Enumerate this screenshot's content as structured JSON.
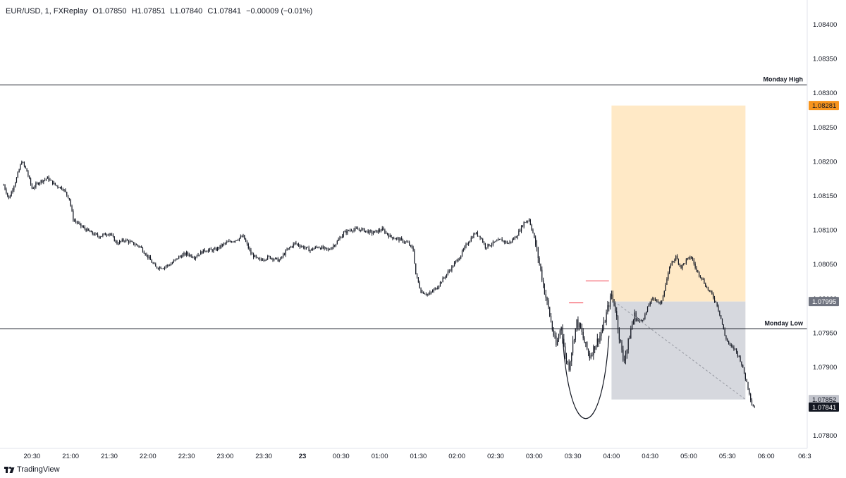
{
  "header": {
    "symbol": "EUR/USD, 1, FXReplay",
    "open": "O1.07850",
    "high": "H1.07851",
    "low": "L1.07840",
    "close": "C1.07841",
    "change": "−0.00009 (−0.01%)"
  },
  "brand": {
    "name": "TradingView",
    "icon": "tradingview-logo-icon"
  },
  "chart_data": {
    "type": "candlestick",
    "instrument": "EUR/USD",
    "timeframe": "1",
    "ylim": [
      1.0778,
      1.0843
    ],
    "y_ticks": [
      "1.08400",
      "1.08350",
      "1.08300",
      "1.08250",
      "1.08200",
      "1.08150",
      "1.08100",
      "1.08050",
      "1.08000",
      "1.07950",
      "1.07900",
      "1.07850",
      "1.07800"
    ],
    "x_ticks": [
      "20:30",
      "21:00",
      "21:30",
      "22:00",
      "22:30",
      "23:00",
      "23:30",
      "23",
      "00:30",
      "01:00",
      "01:30",
      "02:00",
      "02:30",
      "03:00",
      "03:30",
      "04:00",
      "04:30",
      "05:00",
      "05:30",
      "06:00",
      "06:3"
    ],
    "x_tick_minutes": [
      -210,
      -180,
      -150,
      -120,
      -90,
      -60,
      -30,
      0,
      30,
      60,
      90,
      120,
      150,
      180,
      210,
      240,
      270,
      300,
      330,
      360,
      390
    ],
    "bold_tick": "23",
    "price_path": [
      [
        -232,
        1.08165
      ],
      [
        -228,
        1.08145
      ],
      [
        -222,
        1.08175
      ],
      [
        -218,
        1.082
      ],
      [
        -214,
        1.08185
      ],
      [
        -210,
        1.0816
      ],
      [
        -204,
        1.0817
      ],
      [
        -198,
        1.08175
      ],
      [
        -192,
        1.08165
      ],
      [
        -186,
        1.0816
      ],
      [
        -181,
        1.08145
      ],
      [
        -178,
        1.08115
      ],
      [
        -172,
        1.08105
      ],
      [
        -164,
        1.08095
      ],
      [
        -158,
        1.0809
      ],
      [
        -150,
        1.08095
      ],
      [
        -144,
        1.0808
      ],
      [
        -138,
        1.08085
      ],
      [
        -132,
        1.0808
      ],
      [
        -126,
        1.08075
      ],
      [
        -120,
        1.0806
      ],
      [
        -114,
        1.08045
      ],
      [
        -108,
        1.08045
      ],
      [
        -102,
        1.0805
      ],
      [
        -96,
        1.0806
      ],
      [
        -90,
        1.08065
      ],
      [
        -84,
        1.0806
      ],
      [
        -76,
        1.0807
      ],
      [
        -68,
        1.0807
      ],
      [
        -60,
        1.0808
      ],
      [
        -52,
        1.08085
      ],
      [
        -46,
        1.0809
      ],
      [
        -40,
        1.08065
      ],
      [
        -34,
        1.08055
      ],
      [
        -26,
        1.0806
      ],
      [
        -18,
        1.08055
      ],
      [
        -12,
        1.0807
      ],
      [
        -6,
        1.0808
      ],
      [
        0,
        1.08075
      ],
      [
        6,
        1.0807
      ],
      [
        12,
        1.08075
      ],
      [
        20,
        1.0807
      ],
      [
        26,
        1.0808
      ],
      [
        32,
        1.08095
      ],
      [
        38,
        1.081
      ],
      [
        46,
        1.081
      ],
      [
        54,
        1.08095
      ],
      [
        62,
        1.081
      ],
      [
        68,
        1.0809
      ],
      [
        76,
        1.08085
      ],
      [
        82,
        1.0808
      ],
      [
        86,
        1.0807
      ],
      [
        88,
        1.08035
      ],
      [
        92,
        1.0801
      ],
      [
        98,
        1.08005
      ],
      [
        104,
        1.08015
      ],
      [
        110,
        1.0803
      ],
      [
        116,
        1.08045
      ],
      [
        122,
        1.0806
      ],
      [
        128,
        1.0808
      ],
      [
        134,
        1.08095
      ],
      [
        138,
        1.0809
      ],
      [
        142,
        1.08075
      ],
      [
        148,
        1.0808
      ],
      [
        154,
        1.08085
      ],
      [
        160,
        1.0808
      ],
      [
        166,
        1.0809
      ],
      [
        172,
        1.0811
      ],
      [
        176,
        1.08115
      ],
      [
        179,
        1.08095
      ],
      [
        182,
        1.0807
      ],
      [
        185,
        1.0804
      ],
      [
        188,
        1.0801
      ],
      [
        191,
        1.07985
      ],
      [
        194,
        1.07955
      ],
      [
        197,
        1.0793
      ],
      [
        201,
        1.0796
      ],
      [
        204,
        1.07915
      ],
      [
        207,
        1.079
      ],
      [
        210,
        1.07935
      ],
      [
        213,
        1.07965
      ],
      [
        216,
        1.07955
      ],
      [
        219,
        1.07935
      ],
      [
        223,
        1.07915
      ],
      [
        227,
        1.0793
      ],
      [
        231,
        1.07945
      ],
      [
        234,
        1.0796
      ],
      [
        237,
        1.07985
      ],
      [
        240,
        1.08005
      ],
      [
        243,
        1.07985
      ],
      [
        246,
        1.07945
      ],
      [
        249,
        1.0791
      ],
      [
        252,
        1.07925
      ],
      [
        255,
        1.07955
      ],
      [
        258,
        1.07975
      ],
      [
        262,
        1.07965
      ],
      [
        266,
        1.07975
      ],
      [
        270,
        1.07995
      ],
      [
        274,
        1.08
      ],
      [
        278,
        1.0799
      ],
      [
        282,
        1.0802
      ],
      [
        286,
        1.0805
      ],
      [
        290,
        1.0806
      ],
      [
        294,
        1.08045
      ],
      [
        298,
        1.08055
      ],
      [
        302,
        1.0806
      ],
      [
        306,
        1.0804
      ],
      [
        310,
        1.0803
      ],
      [
        314,
        1.08015
      ],
      [
        318,
        1.08005
      ],
      [
        322,
        1.0799
      ],
      [
        325,
        1.0797
      ],
      [
        328,
        1.07945
      ],
      [
        332,
        1.0793
      ],
      [
        336,
        1.07925
      ],
      [
        340,
        1.0791
      ],
      [
        343,
        1.0789
      ],
      [
        346,
        1.0787
      ],
      [
        349,
        1.07845
      ],
      [
        351,
        1.07841
      ]
    ],
    "horizontal_levels": [
      {
        "label": "Monday High",
        "price": 1.08311
      },
      {
        "label": "Monday Low",
        "price": 1.07955
      }
    ],
    "short_position": {
      "start_minute": 240,
      "end_minute": 344,
      "entry": 1.07995,
      "stop": 1.08281,
      "target": 1.07852,
      "stop_color": "#ffe9c6",
      "target_color": "#d6d8de"
    },
    "price_labels": [
      {
        "text": "1.08281",
        "price": 1.08281,
        "bg": "#f7941d",
        "fg": "#131722"
      },
      {
        "text": "1.07995",
        "price": 1.07995,
        "bg": "#707480",
        "fg": "#ffffff"
      },
      {
        "text": "1.07852",
        "price": 1.07852,
        "bg": "#c2c4cc",
        "fg": "#131722"
      },
      {
        "text": "1.07841",
        "price": 1.07841,
        "bg": "#131722",
        "fg": "#ffffff"
      }
    ],
    "red_marks": [
      {
        "from_minute": 207,
        "to_minute": 218,
        "price": 1.07993
      },
      {
        "from_minute": 220,
        "to_minute": 238,
        "price": 1.08025
      }
    ],
    "curve": {
      "from_minute": 202,
      "to_minute": 238,
      "top_price": 1.07945,
      "bottom_price": 1.07825
    },
    "colors": {
      "candle": "#131722",
      "grid_axis": "#e0e3eb",
      "axis_text": "#131722",
      "level_line": "#131722",
      "red_mark": "#f23645",
      "dashed": "#9598a1"
    }
  }
}
